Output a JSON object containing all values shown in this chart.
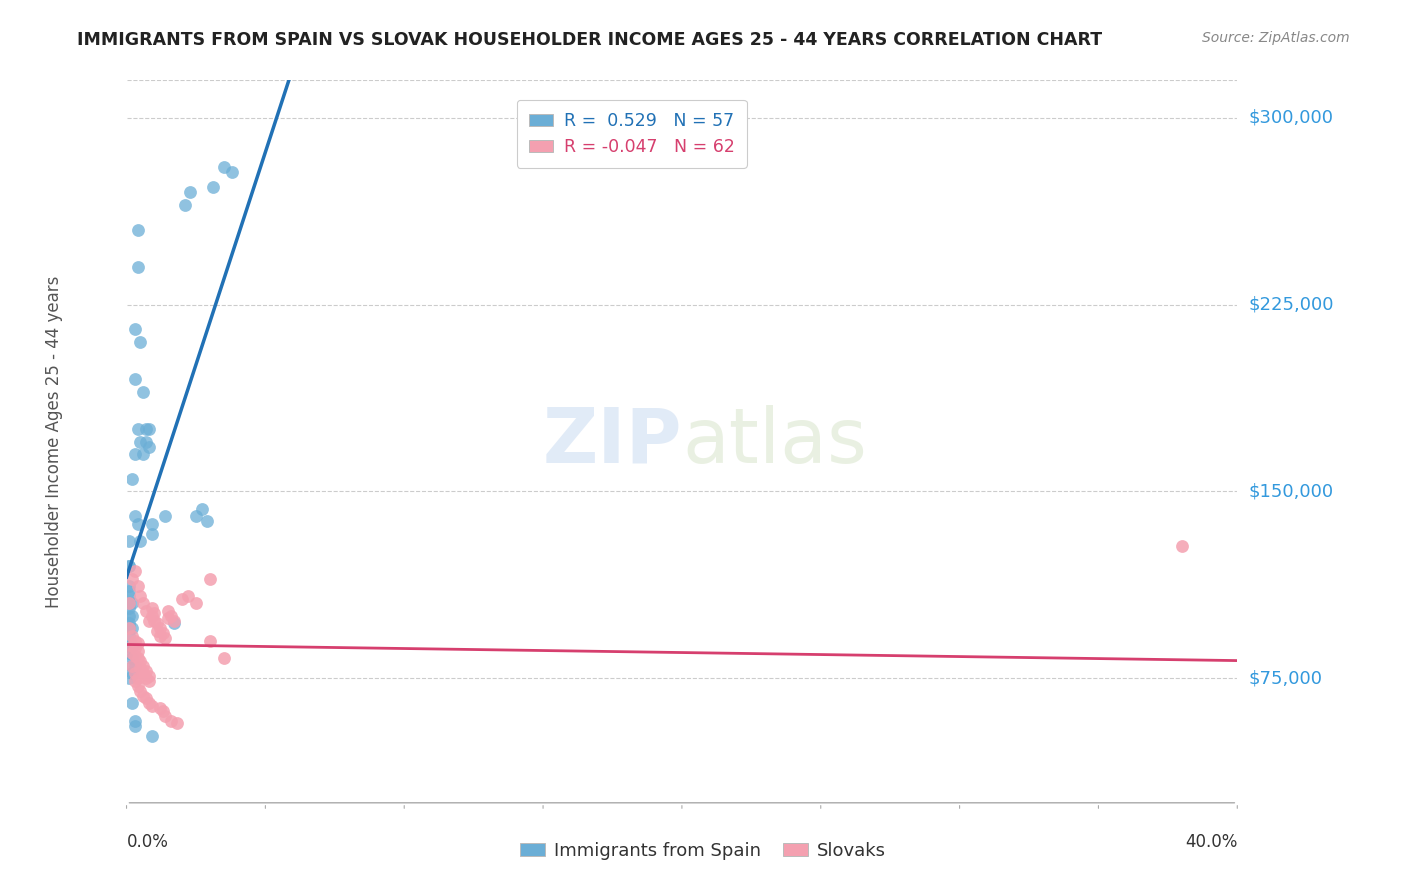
{
  "title": "IMMIGRANTS FROM SPAIN VS SLOVAK HOUSEHOLDER INCOME AGES 25 - 44 YEARS CORRELATION CHART",
  "source": "Source: ZipAtlas.com",
  "ylabel": "Householder Income Ages 25 - 44 years",
  "yticks": [
    75000,
    150000,
    225000,
    300000
  ],
  "ytick_labels": [
    "$75,000",
    "$150,000",
    "$225,000",
    "$300,000"
  ],
  "xmin": 0.0,
  "xmax": 0.4,
  "ymin": 25000,
  "ymax": 315000,
  "legend_entries": [
    {
      "label_r": "R =  0.529",
      "label_n": "N = 57",
      "color": "#a8c4e0"
    },
    {
      "label_r": "R = -0.047",
      "label_n": "N = 62",
      "color": "#f4a0b0"
    }
  ],
  "legend_bottom": [
    "Immigrants from Spain",
    "Slovaks"
  ],
  "spain_color": "#6baed6",
  "slovak_color": "#f4a0b0",
  "spain_line_color": "#2171b5",
  "slovak_line_color": "#d63f6e",
  "spain_R": 0.529,
  "slovak_R": -0.047,
  "watermark_zip": "ZIP",
  "watermark_atlas": "atlas",
  "spain_points": [
    [
      0.001,
      120000
    ],
    [
      0.002,
      155000
    ],
    [
      0.003,
      215000
    ],
    [
      0.003,
      195000
    ],
    [
      0.004,
      240000
    ],
    [
      0.004,
      255000
    ],
    [
      0.005,
      210000
    ],
    [
      0.006,
      190000
    ],
    [
      0.003,
      165000
    ],
    [
      0.004,
      175000
    ],
    [
      0.005,
      170000
    ],
    [
      0.006,
      165000
    ],
    [
      0.007,
      170000
    ],
    [
      0.007,
      175000
    ],
    [
      0.008,
      175000
    ],
    [
      0.008,
      168000
    ],
    [
      0.001,
      130000
    ],
    [
      0.001,
      120000
    ],
    [
      0.001,
      110000
    ],
    [
      0.001,
      100000
    ],
    [
      0.001,
      95000
    ],
    [
      0.002,
      105000
    ],
    [
      0.002,
      100000
    ],
    [
      0.002,
      95000
    ],
    [
      0.001,
      105000
    ],
    [
      0.001,
      112000
    ],
    [
      0.001,
      108000
    ],
    [
      0.001,
      103000
    ],
    [
      0.001,
      97000
    ],
    [
      0.001,
      92000
    ],
    [
      0.001,
      88000
    ],
    [
      0.001,
      85000
    ],
    [
      0.002,
      88000
    ],
    [
      0.002,
      83000
    ],
    [
      0.002,
      80000
    ],
    [
      0.002,
      77000
    ],
    [
      0.003,
      80000
    ],
    [
      0.003,
      140000
    ],
    [
      0.004,
      137000
    ],
    [
      0.005,
      130000
    ],
    [
      0.009,
      137000
    ],
    [
      0.009,
      133000
    ],
    [
      0.001,
      75000
    ],
    [
      0.002,
      65000
    ],
    [
      0.003,
      58000
    ],
    [
      0.003,
      56000
    ],
    [
      0.009,
      52000
    ],
    [
      0.014,
      140000
    ],
    [
      0.017,
      97000
    ],
    [
      0.021,
      265000
    ],
    [
      0.023,
      270000
    ],
    [
      0.029,
      138000
    ],
    [
      0.031,
      272000
    ],
    [
      0.035,
      280000
    ],
    [
      0.038,
      278000
    ],
    [
      0.025,
      140000
    ],
    [
      0.027,
      143000
    ]
  ],
  "slovak_points": [
    [
      0.001,
      105000
    ],
    [
      0.002,
      115000
    ],
    [
      0.003,
      118000
    ],
    [
      0.004,
      112000
    ],
    [
      0.005,
      108000
    ],
    [
      0.006,
      105000
    ],
    [
      0.007,
      102000
    ],
    [
      0.008,
      98000
    ],
    [
      0.001,
      95000
    ],
    [
      0.002,
      92000
    ],
    [
      0.002,
      88000
    ],
    [
      0.002,
      85000
    ],
    [
      0.003,
      90000
    ],
    [
      0.003,
      87000
    ],
    [
      0.003,
      84000
    ],
    [
      0.004,
      89000
    ],
    [
      0.004,
      86000
    ],
    [
      0.004,
      83000
    ],
    [
      0.005,
      82000
    ],
    [
      0.005,
      79000
    ],
    [
      0.006,
      80000
    ],
    [
      0.006,
      77000
    ],
    [
      0.007,
      78000
    ],
    [
      0.007,
      75000
    ],
    [
      0.008,
      76000
    ],
    [
      0.008,
      74000
    ],
    [
      0.009,
      103000
    ],
    [
      0.009,
      100000
    ],
    [
      0.01,
      101000
    ],
    [
      0.01,
      98000
    ],
    [
      0.011,
      97000
    ],
    [
      0.011,
      94000
    ],
    [
      0.012,
      95000
    ],
    [
      0.012,
      92000
    ],
    [
      0.013,
      93000
    ],
    [
      0.014,
      91000
    ],
    [
      0.015,
      102000
    ],
    [
      0.015,
      99000
    ],
    [
      0.016,
      100000
    ],
    [
      0.017,
      98000
    ],
    [
      0.002,
      80000
    ],
    [
      0.003,
      77000
    ],
    [
      0.003,
      74000
    ],
    [
      0.004,
      75000
    ],
    [
      0.004,
      72000
    ],
    [
      0.005,
      70000
    ],
    [
      0.006,
      68000
    ],
    [
      0.007,
      67000
    ],
    [
      0.008,
      65000
    ],
    [
      0.009,
      64000
    ],
    [
      0.012,
      63000
    ],
    [
      0.013,
      62000
    ],
    [
      0.014,
      60000
    ],
    [
      0.016,
      58000
    ],
    [
      0.018,
      57000
    ],
    [
      0.02,
      107000
    ],
    [
      0.022,
      108000
    ],
    [
      0.025,
      105000
    ],
    [
      0.03,
      115000
    ],
    [
      0.03,
      90000
    ],
    [
      0.035,
      83000
    ],
    [
      0.38,
      128000
    ]
  ]
}
